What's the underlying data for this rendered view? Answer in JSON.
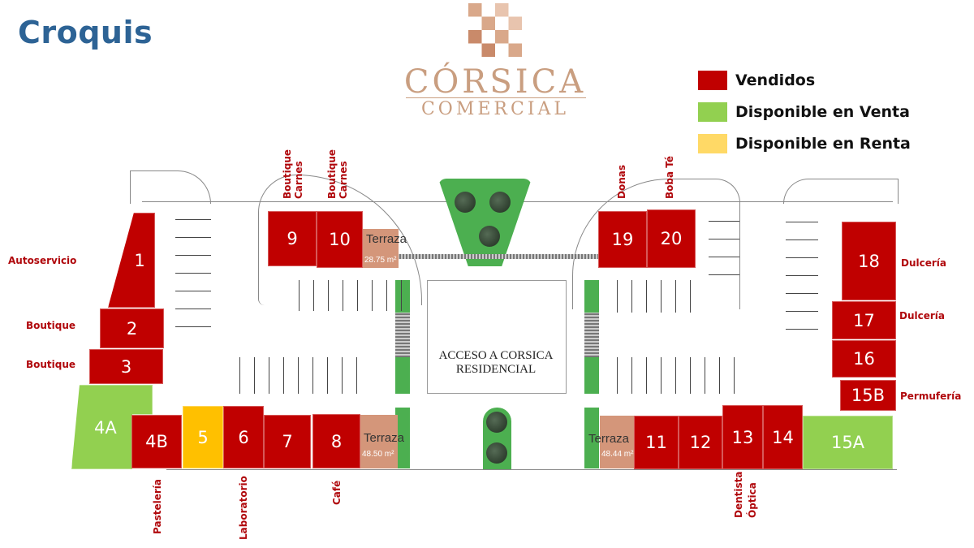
{
  "title": "Croquis",
  "logo": {
    "name": "CÓRSICA",
    "subtitle": "COMERCIAL",
    "color": "#c99e80"
  },
  "legend": [
    {
      "label": "Vendidos",
      "color": "#c00000",
      "status": "sold"
    },
    {
      "label": "Disponible en Venta",
      "color": "#92d050",
      "status": "for-sale"
    },
    {
      "label": "Disponible en Renta",
      "color": "#ffd966",
      "status": "for-rent"
    }
  ],
  "colors": {
    "sold": "#c00000",
    "for-sale": "#92d050",
    "for-rent": "#ffc000",
    "terrace": "#d4967a",
    "garden": "#4caf50",
    "label": "#b0080c"
  },
  "access_label": "ACCESO A CORSICA RESIDENCIAL",
  "terraces": [
    {
      "label": "Terraza",
      "area": "28.75 m²"
    },
    {
      "label": "Terraza",
      "area": "48.50 m²"
    },
    {
      "label": "Terraza",
      "area": "48.44 m²"
    }
  ],
  "units": [
    {
      "id": "1",
      "status": "sold"
    },
    {
      "id": "2",
      "status": "sold"
    },
    {
      "id": "3",
      "status": "sold"
    },
    {
      "id": "4A",
      "status": "for-sale"
    },
    {
      "id": "4B",
      "status": "sold"
    },
    {
      "id": "5",
      "status": "for-rent"
    },
    {
      "id": "6",
      "status": "sold"
    },
    {
      "id": "7",
      "status": "sold"
    },
    {
      "id": "8",
      "status": "sold"
    },
    {
      "id": "9",
      "status": "sold"
    },
    {
      "id": "10",
      "status": "sold"
    },
    {
      "id": "11",
      "status": "sold"
    },
    {
      "id": "12",
      "status": "sold"
    },
    {
      "id": "13",
      "status": "sold"
    },
    {
      "id": "14",
      "status": "sold"
    },
    {
      "id": "15A",
      "status": "for-sale"
    },
    {
      "id": "15B",
      "status": "sold"
    },
    {
      "id": "16",
      "status": "sold"
    },
    {
      "id": "17",
      "status": "sold"
    },
    {
      "id": "18",
      "status": "sold"
    },
    {
      "id": "19",
      "status": "sold"
    },
    {
      "id": "20",
      "status": "sold"
    }
  ],
  "business_labels": [
    {
      "unit": "1",
      "text": "Autoservicio"
    },
    {
      "unit": "2",
      "text": "Boutique"
    },
    {
      "unit": "3",
      "text": "Boutique"
    },
    {
      "unit": "4B",
      "text": "Pastelería"
    },
    {
      "unit": "6",
      "text": "Laboratorio"
    },
    {
      "unit": "8",
      "text": "Café"
    },
    {
      "unit": "9",
      "text": "Boutique Carnes"
    },
    {
      "unit": "10",
      "text": "Boutique Carnes"
    },
    {
      "unit": "19",
      "text": "Donas"
    },
    {
      "unit": "20",
      "text": "Boba Té"
    },
    {
      "unit": "13",
      "text": "Dentista"
    },
    {
      "unit": "14",
      "text": "Óptica"
    },
    {
      "unit": "18",
      "text": "Dulcería"
    },
    {
      "unit": "17",
      "text": "Dulcería"
    },
    {
      "unit": "15B",
      "text": "Permufería"
    }
  ]
}
